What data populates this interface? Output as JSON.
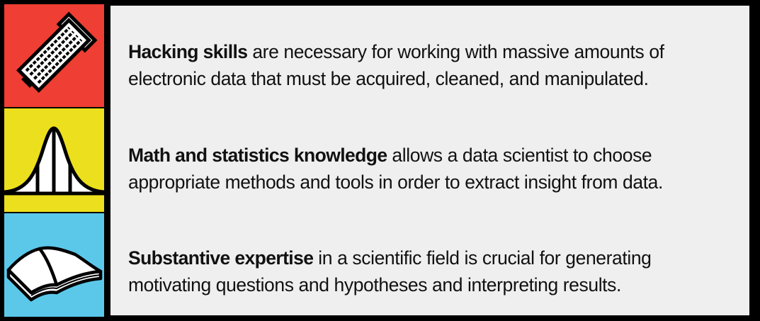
{
  "colors": {
    "frame": "#000000",
    "hacking_band": "#ef3e33",
    "math_band": "#ecdf1d",
    "expertise_band": "#5bc8ea",
    "panel": "#efefef"
  },
  "items": [
    {
      "icon": "keyboard-hammer-icon",
      "title": "Hacking skills",
      "line1": " are necessary for working with massive amounts of",
      "line2": "electronic data that must be acquired, cleaned, and manipulated."
    },
    {
      "icon": "bell-curve-icon",
      "title": "Math and statistics knowledge",
      "line1": " allows a data scientist to choose",
      "line2": "appropriate methods and tools in order to extract insight from data."
    },
    {
      "icon": "open-book-icon",
      "title": "Substantive expertise",
      "line1": " in a scientific field is crucial for generating",
      "line2": "motivating questions and hypotheses and interpreting results."
    }
  ]
}
